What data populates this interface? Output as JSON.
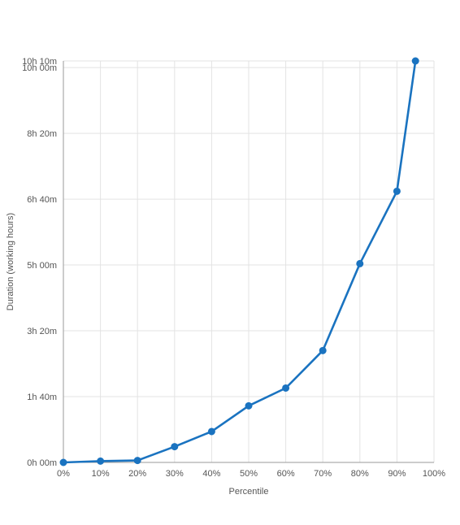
{
  "chart_data": {
    "type": "line",
    "title": "",
    "xlabel": "Percentile",
    "ylabel": "Duration (working hours)",
    "x_unit": "percent",
    "y_unit": "minutes",
    "xlim": [
      0,
      100
    ],
    "ylim": [
      0,
      610
    ],
    "x_ticks": [
      0,
      10,
      20,
      30,
      40,
      50,
      60,
      70,
      80,
      90,
      100
    ],
    "x_tick_labels": [
      "0%",
      "10%",
      "20%",
      "30%",
      "40%",
      "50%",
      "60%",
      "70%",
      "80%",
      "90%",
      "100%"
    ],
    "y_ticks": [
      0,
      100,
      200,
      300,
      400,
      500,
      600,
      610
    ],
    "y_tick_labels": [
      "0h 00m",
      "1h 40m",
      "3h 20m",
      "5h 00m",
      "6h 40m",
      "8h 20m",
      "10h 00m",
      "10h 10m"
    ],
    "grid": true,
    "legend": "none",
    "series": [
      {
        "color": "#1a73c0",
        "x": [
          0,
          10,
          20,
          30,
          40,
          50,
          60,
          70,
          80,
          90,
          95
        ],
        "y": [
          0,
          2,
          3,
          24,
          47,
          86,
          113,
          170,
          302,
          412,
          610
        ]
      }
    ]
  }
}
